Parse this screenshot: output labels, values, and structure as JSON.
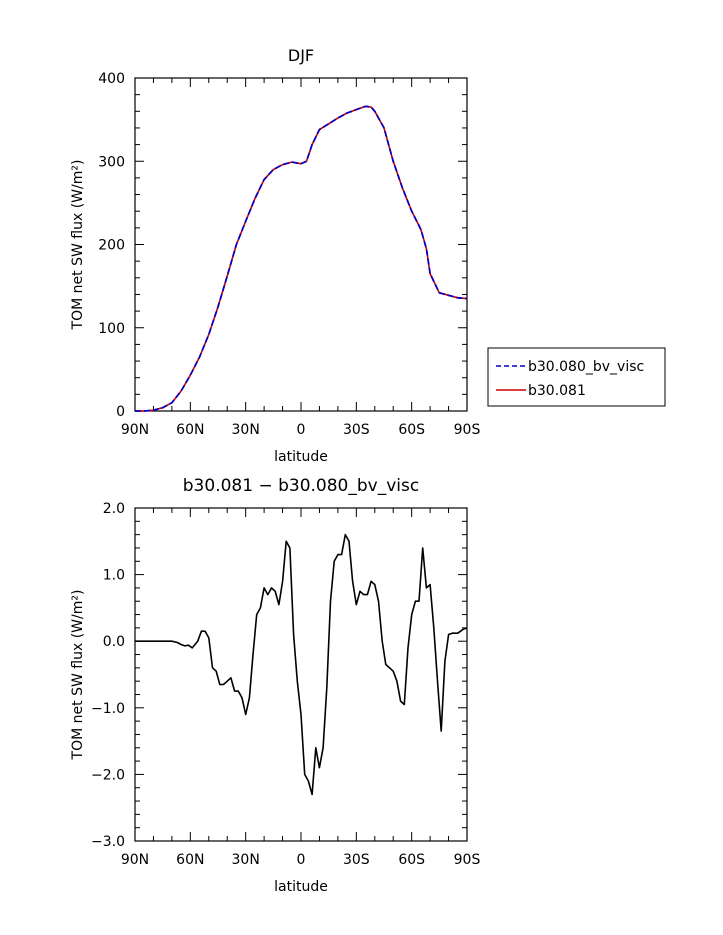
{
  "chart_data": [
    {
      "type": "line",
      "title": "DJF",
      "xlabel": "latitude",
      "ylabel": "TOM net SW flux (W/m²)",
      "xlim": [
        90,
        -90
      ],
      "ylim": [
        0,
        400
      ],
      "x_ticks": [
        90,
        60,
        30,
        0,
        -30,
        -60,
        -90
      ],
      "x_tick_labels": [
        "90N",
        "60N",
        "30N",
        "0",
        "30S",
        "60S",
        "90S"
      ],
      "y_ticks": [
        0,
        100,
        200,
        300,
        400
      ],
      "y_tick_labels": [
        "0",
        "100",
        "200",
        "300",
        "400"
      ],
      "legend_position": "right",
      "x": [
        90,
        85,
        80,
        75,
        70,
        65,
        60,
        55,
        50,
        45,
        40,
        35,
        30,
        25,
        20,
        15,
        10,
        5,
        0,
        -3,
        -6,
        -10,
        -15,
        -20,
        -25,
        -30,
        -35,
        -38,
        -40,
        -45,
        -50,
        -55,
        -60,
        -65,
        -68,
        -70,
        -75,
        -80,
        -85,
        -90
      ],
      "series": [
        {
          "name": "b30.080_bv_visc",
          "color": "#0000cc",
          "dash": true,
          "values": [
            0,
            0,
            1,
            4,
            10,
            24,
            43,
            65,
            92,
            125,
            162,
            200,
            228,
            255,
            278,
            290,
            296,
            299,
            297,
            300,
            320,
            338,
            345,
            352,
            358,
            362,
            366,
            365,
            360,
            340,
            300,
            268,
            240,
            218,
            195,
            165,
            142,
            139,
            136,
            135
          ]
        },
        {
          "name": "b30.081",
          "color": "#cc0000",
          "dash": false,
          "values": [
            0,
            0,
            1,
            4,
            10,
            24,
            43,
            65,
            92,
            125,
            162,
            200,
            228,
            255,
            278,
            290,
            296,
            299,
            297,
            300,
            320,
            338,
            345,
            352,
            358,
            362,
            366,
            365,
            360,
            340,
            300,
            268,
            240,
            218,
            195,
            165,
            142,
            139,
            136,
            135
          ]
        }
      ]
    },
    {
      "type": "line",
      "title": "b30.081 − b30.080_bv_visc",
      "xlabel": "latitude",
      "ylabel": "TOM net SW flux (W/m²)",
      "xlim": [
        90,
        -90
      ],
      "ylim": [
        -3,
        2
      ],
      "x_ticks": [
        90,
        60,
        30,
        0,
        -30,
        -60,
        -90
      ],
      "x_tick_labels": [
        "90N",
        "60N",
        "30N",
        "0",
        "30S",
        "60S",
        "90S"
      ],
      "y_ticks": [
        -3,
        -2,
        -1,
        0,
        1,
        2
      ],
      "y_tick_labels": [
        "−3.0",
        "−2.0",
        "−1.0",
        "0.0",
        "1.0",
        "2.0"
      ],
      "x": [
        90,
        80,
        75,
        70,
        67,
        65,
        63,
        61,
        59,
        56,
        54,
        52,
        50,
        48,
        46,
        44,
        42,
        40,
        38,
        36,
        34,
        32,
        30,
        28,
        26,
        24,
        22,
        20,
        18,
        16,
        14,
        12,
        10,
        8,
        6,
        4,
        2,
        0,
        -2,
        -4,
        -6,
        -8,
        -10,
        -12,
        -14,
        -16,
        -18,
        -20,
        -22,
        -24,
        -26,
        -28,
        -30,
        -32,
        -34,
        -36,
        -38,
        -40,
        -42,
        -44,
        -46,
        -48,
        -50,
        -52,
        -54,
        -56,
        -58,
        -60,
        -62,
        -64,
        -66,
        -68,
        -70,
        -72,
        -74,
        -76,
        -78,
        -80,
        -82,
        -85,
        -88,
        -90
      ],
      "series": [
        {
          "name": "",
          "color": "#000000",
          "values": [
            0,
            0,
            0,
            0,
            -0.02,
            -0.05,
            -0.07,
            -0.06,
            -0.1,
            0.0,
            0.15,
            0.15,
            0.05,
            -0.4,
            -0.45,
            -0.65,
            -0.65,
            -0.6,
            -0.55,
            -0.75,
            -0.75,
            -0.85,
            -1.1,
            -0.85,
            -0.2,
            0.4,
            0.5,
            0.8,
            0.7,
            0.8,
            0.75,
            0.55,
            0.9,
            1.5,
            1.4,
            0.1,
            -0.6,
            -1.1,
            -2.0,
            -2.1,
            -2.3,
            -1.6,
            -1.9,
            -1.6,
            -0.7,
            0.6,
            1.2,
            1.3,
            1.3,
            1.6,
            1.5,
            0.9,
            0.55,
            0.75,
            0.7,
            0.7,
            0.9,
            0.85,
            0.6,
            0.0,
            -0.35,
            -0.4,
            -0.45,
            -0.6,
            -0.9,
            -0.95,
            -0.1,
            0.4,
            0.6,
            0.6,
            1.4,
            0.8,
            0.85,
            0.2,
            -0.6,
            -1.35,
            -0.3,
            0.1,
            0.12,
            0.12,
            0.18,
            0.2
          ]
        }
      ]
    }
  ]
}
